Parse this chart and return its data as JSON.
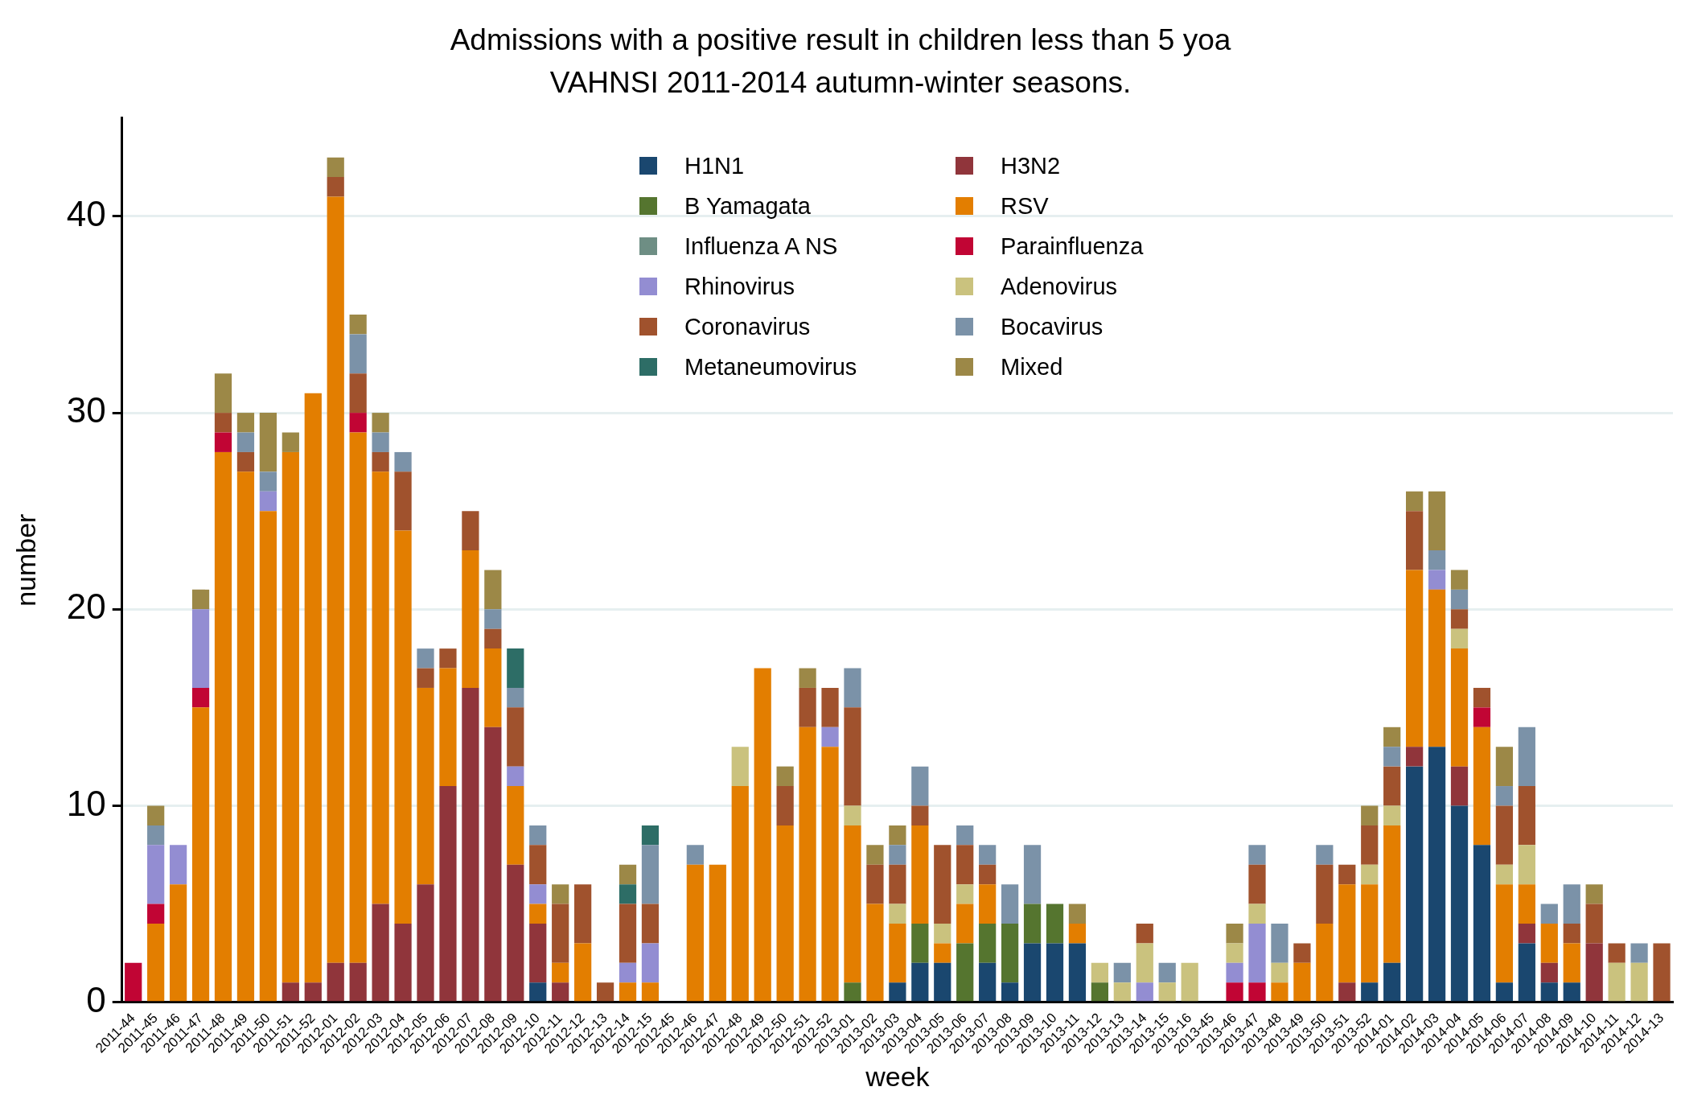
{
  "chart_data": {
    "type": "bar",
    "title": "Admissions with a positive result in children less than 5 yoa",
    "subtitle": "VAHNSI 2011-2014 autumn-winter seasons.",
    "xlabel": "week",
    "ylabel": "number",
    "categories": [
      "2011-44",
      "2011-45",
      "2011-46",
      "2011-47",
      "2011-48",
      "2011-49",
      "2011-50",
      "2011-51",
      "2011-52",
      "2012-01",
      "2012-02",
      "2012-03",
      "2012-04",
      "2012-05",
      "2012-06",
      "2012-07",
      "2012-08",
      "2012-09",
      "2012-10",
      "2012-11",
      "2012-12",
      "2012-13",
      "2012-14",
      "2012-15",
      "2012-45",
      "2012-46",
      "2012-47",
      "2012-48",
      "2012-49",
      "2012-50",
      "2012-51",
      "2012-52",
      "2013-01",
      "2013-02",
      "2013-03",
      "2013-04",
      "2013-05",
      "2013-06",
      "2013-07",
      "2013-08",
      "2013-09",
      "2013-10",
      "2013-11",
      "2013-12",
      "2013-13",
      "2013-14",
      "2013-15",
      "2013-16",
      "2013-45",
      "2013-46",
      "2013-47",
      "2013-48",
      "2013-49",
      "2013-50",
      "2013-51",
      "2013-52",
      "2014-01",
      "2014-02",
      "2014-03",
      "2014-04",
      "2014-05",
      "2014-06",
      "2014-07",
      "2014-08",
      "2014-09",
      "2014-10",
      "2014-11",
      "2014-12",
      "2014-13"
    ],
    "stacked": true,
    "ylim": [
      0,
      45
    ],
    "yticks": [
      0,
      10,
      20,
      30,
      40
    ],
    "grid": "y",
    "legend": "top",
    "series": [
      {
        "name": "H1N1",
        "color": "#1a476f",
        "values": [
          0,
          0,
          0,
          0,
          0,
          0,
          0,
          0,
          0,
          0,
          0,
          0,
          0,
          0,
          0,
          0,
          0,
          0,
          1,
          0,
          0,
          0,
          0,
          0,
          0,
          0,
          0,
          0,
          0,
          0,
          0,
          0,
          0,
          0,
          1,
          2,
          2,
          0,
          2,
          1,
          3,
          3,
          3,
          0,
          0,
          0,
          0,
          0,
          0,
          0,
          0,
          0,
          0,
          0,
          0,
          1,
          2,
          12,
          13,
          10,
          8,
          1,
          3,
          1,
          1,
          0,
          0,
          0,
          0
        ]
      },
      {
        "name": "H3N2",
        "color": "#90353b",
        "values": [
          0,
          0,
          0,
          0,
          0,
          0,
          0,
          1,
          1,
          2,
          2,
          5,
          4,
          6,
          11,
          16,
          14,
          7,
          3,
          1,
          0,
          0,
          0,
          0,
          0,
          0,
          0,
          0,
          0,
          0,
          0,
          0,
          0,
          0,
          0,
          0,
          0,
          0,
          0,
          0,
          0,
          0,
          0,
          0,
          0,
          0,
          0,
          0,
          0,
          0,
          0,
          0,
          0,
          0,
          1,
          0,
          0,
          1,
          0,
          2,
          0,
          0,
          1,
          1,
          0,
          3,
          0,
          0,
          0
        ]
      },
      {
        "name": "B Yamagata",
        "color": "#55752f",
        "values": [
          0,
          0,
          0,
          0,
          0,
          0,
          0,
          0,
          0,
          0,
          0,
          0,
          0,
          0,
          0,
          0,
          0,
          0,
          0,
          0,
          0,
          0,
          0,
          0,
          0,
          0,
          0,
          0,
          0,
          0,
          0,
          0,
          1,
          0,
          0,
          2,
          0,
          3,
          2,
          3,
          2,
          2,
          0,
          1,
          0,
          0,
          0,
          0,
          0,
          0,
          0,
          0,
          0,
          0,
          0,
          0,
          0,
          0,
          0,
          0,
          0,
          0,
          0,
          0,
          0,
          0,
          0,
          0,
          0
        ]
      },
      {
        "name": "RSV",
        "color": "#e37e00",
        "values": [
          0,
          4,
          6,
          15,
          28,
          27,
          25,
          27,
          30,
          39,
          27,
          22,
          20,
          10,
          6,
          7,
          4,
          4,
          1,
          1,
          3,
          0,
          1,
          1,
          0,
          7,
          7,
          11,
          17,
          9,
          14,
          13,
          8,
          5,
          3,
          5,
          1,
          2,
          2,
          0,
          0,
          0,
          1,
          0,
          0,
          0,
          0,
          0,
          0,
          0,
          0,
          1,
          2,
          4,
          5,
          5,
          7,
          9,
          8,
          6,
          6,
          5,
          2,
          2,
          2,
          0,
          0,
          0,
          0
        ]
      },
      {
        "name": "Influenza A NS",
        "color": "#6e8e84",
        "values": [
          0,
          0,
          0,
          0,
          0,
          0,
          0,
          0,
          0,
          0,
          0,
          0,
          0,
          0,
          0,
          0,
          0,
          0,
          0,
          0,
          0,
          0,
          0,
          0,
          0,
          0,
          0,
          0,
          0,
          0,
          0,
          0,
          0,
          0,
          0,
          0,
          0,
          0,
          0,
          0,
          0,
          0,
          0,
          0,
          0,
          0,
          0,
          0,
          0,
          0,
          0,
          0,
          0,
          0,
          0,
          0,
          0,
          0,
          0,
          0,
          0,
          0,
          0,
          0,
          0,
          0,
          0,
          0,
          0
        ]
      },
      {
        "name": "Parainfluenza",
        "color": "#c10534",
        "values": [
          2,
          1,
          0,
          1,
          1,
          0,
          0,
          0,
          0,
          0,
          1,
          0,
          0,
          0,
          0,
          0,
          0,
          0,
          0,
          0,
          0,
          0,
          0,
          0,
          0,
          0,
          0,
          0,
          0,
          0,
          0,
          0,
          0,
          0,
          0,
          0,
          0,
          0,
          0,
          0,
          0,
          0,
          0,
          0,
          0,
          0,
          0,
          0,
          0,
          1,
          1,
          0,
          0,
          0,
          0,
          0,
          0,
          0,
          0,
          0,
          1,
          0,
          0,
          0,
          0,
          0,
          0,
          0,
          0
        ]
      },
      {
        "name": "Rhinovirus",
        "color": "#938dd2",
        "values": [
          0,
          3,
          2,
          4,
          0,
          0,
          1,
          0,
          0,
          0,
          0,
          0,
          0,
          0,
          0,
          0,
          0,
          1,
          1,
          0,
          0,
          0,
          1,
          2,
          0,
          0,
          0,
          0,
          0,
          0,
          0,
          1,
          0,
          0,
          0,
          0,
          0,
          0,
          0,
          0,
          0,
          0,
          0,
          0,
          0,
          1,
          0,
          0,
          0,
          1,
          3,
          0,
          0,
          0,
          0,
          0,
          0,
          0,
          1,
          0,
          0,
          0,
          0,
          0,
          0,
          0,
          0,
          0,
          0
        ]
      },
      {
        "name": "Adenovirus",
        "color": "#cac27e",
        "values": [
          0,
          0,
          0,
          0,
          0,
          0,
          0,
          0,
          0,
          0,
          0,
          0,
          0,
          0,
          0,
          0,
          0,
          0,
          0,
          0,
          0,
          0,
          0,
          0,
          0,
          0,
          0,
          2,
          0,
          0,
          0,
          0,
          1,
          0,
          1,
          0,
          1,
          1,
          0,
          0,
          0,
          0,
          0,
          1,
          1,
          2,
          1,
          2,
          0,
          1,
          1,
          1,
          0,
          0,
          0,
          1,
          1,
          0,
          0,
          1,
          0,
          1,
          2,
          0,
          0,
          0,
          2,
          2,
          0
        ]
      },
      {
        "name": "Coronavirus",
        "color": "#a0522d",
        "values": [
          0,
          0,
          0,
          0,
          1,
          1,
          0,
          0,
          0,
          1,
          2,
          1,
          3,
          1,
          1,
          2,
          1,
          3,
          2,
          3,
          3,
          1,
          3,
          2,
          0,
          0,
          0,
          0,
          0,
          2,
          2,
          2,
          5,
          2,
          2,
          1,
          4,
          2,
          1,
          0,
          0,
          0,
          0,
          0,
          0,
          1,
          0,
          0,
          0,
          0,
          2,
          0,
          1,
          3,
          1,
          2,
          2,
          3,
          0,
          1,
          1,
          3,
          3,
          0,
          1,
          2,
          1,
          0,
          3
        ]
      },
      {
        "name": "Bocavirus",
        "color": "#7b92a8",
        "values": [
          0,
          1,
          0,
          0,
          0,
          1,
          1,
          0,
          0,
          0,
          2,
          1,
          1,
          1,
          0,
          0,
          1,
          1,
          1,
          0,
          0,
          0,
          0,
          3,
          0,
          1,
          0,
          0,
          0,
          0,
          0,
          0,
          2,
          0,
          1,
          2,
          0,
          1,
          1,
          2,
          3,
          0,
          0,
          0,
          1,
          0,
          1,
          0,
          0,
          0,
          1,
          2,
          0,
          1,
          0,
          0,
          1,
          0,
          1,
          1,
          0,
          1,
          3,
          1,
          2,
          0,
          0,
          1,
          0
        ]
      },
      {
        "name": "Metaneumovirus",
        "color": "#2d6d66",
        "values": [
          0,
          0,
          0,
          0,
          0,
          0,
          0,
          0,
          0,
          0,
          0,
          0,
          0,
          0,
          0,
          0,
          0,
          2,
          0,
          0,
          0,
          0,
          1,
          1,
          0,
          0,
          0,
          0,
          0,
          0,
          0,
          0,
          0,
          0,
          0,
          0,
          0,
          0,
          0,
          0,
          0,
          0,
          0,
          0,
          0,
          0,
          0,
          0,
          0,
          0,
          0,
          0,
          0,
          0,
          0,
          0,
          0,
          0,
          0,
          0,
          0,
          0,
          0,
          0,
          0,
          0,
          0,
          0,
          0
        ]
      },
      {
        "name": "Mixed",
        "color": "#9c8847",
        "values": [
          0,
          1,
          0,
          1,
          2,
          1,
          3,
          1,
          0,
          1,
          1,
          1,
          0,
          0,
          0,
          0,
          2,
          0,
          0,
          1,
          0,
          0,
          1,
          0,
          0,
          0,
          0,
          0,
          0,
          1,
          1,
          0,
          0,
          1,
          1,
          0,
          0,
          0,
          0,
          0,
          0,
          0,
          1,
          0,
          0,
          0,
          0,
          0,
          0,
          1,
          0,
          0,
          0,
          0,
          0,
          1,
          1,
          1,
          3,
          1,
          0,
          2,
          0,
          0,
          0,
          1,
          0,
          0,
          0
        ]
      }
    ]
  }
}
